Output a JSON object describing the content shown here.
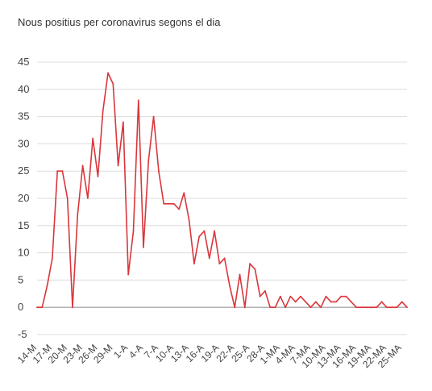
{
  "chart_data": {
    "type": "line",
    "title": "Nous positius per coronavirus segons el dia",
    "xlabel": "",
    "ylabel": "",
    "ylim": [
      -5,
      45
    ],
    "yticks": [
      -5,
      0,
      5,
      10,
      15,
      20,
      25,
      30,
      35,
      40,
      45
    ],
    "grid": true,
    "legend": "none",
    "colors": {
      "line": "#d9363b",
      "grid": "#dcdcdc",
      "zero": "#9a9a9a",
      "text": "#444444"
    },
    "xticks": [
      "14-M",
      "17-M",
      "20-M",
      "23-M",
      "26-M",
      "29-M",
      "1-A",
      "4-A",
      "7-A",
      "10-A",
      "13-A",
      "16-A",
      "19-A",
      "22-A",
      "25-A",
      "28-A",
      "1-MA",
      "4-MA",
      "7-MA",
      "10-MA",
      "13-MA",
      "16-MA",
      "19-MA",
      "22-MA",
      "25-MA"
    ],
    "series": [
      {
        "values": [
          0,
          0,
          4,
          9,
          25,
          25,
          20,
          0,
          17,
          26,
          20,
          31,
          24,
          36,
          43,
          41,
          26,
          34,
          6,
          14,
          38,
          11,
          27,
          35,
          25,
          19,
          19,
          19,
          18,
          21,
          16,
          8,
          13,
          14,
          9,
          14,
          8,
          9,
          4,
          0,
          6,
          0,
          8,
          7,
          2,
          3,
          0,
          0,
          2,
          0,
          2,
          1,
          2,
          1,
          0,
          1,
          0,
          2,
          1,
          1,
          2,
          2,
          1,
          0,
          0,
          0,
          0,
          0,
          1,
          0,
          0,
          0,
          1,
          0
        ]
      }
    ]
  }
}
